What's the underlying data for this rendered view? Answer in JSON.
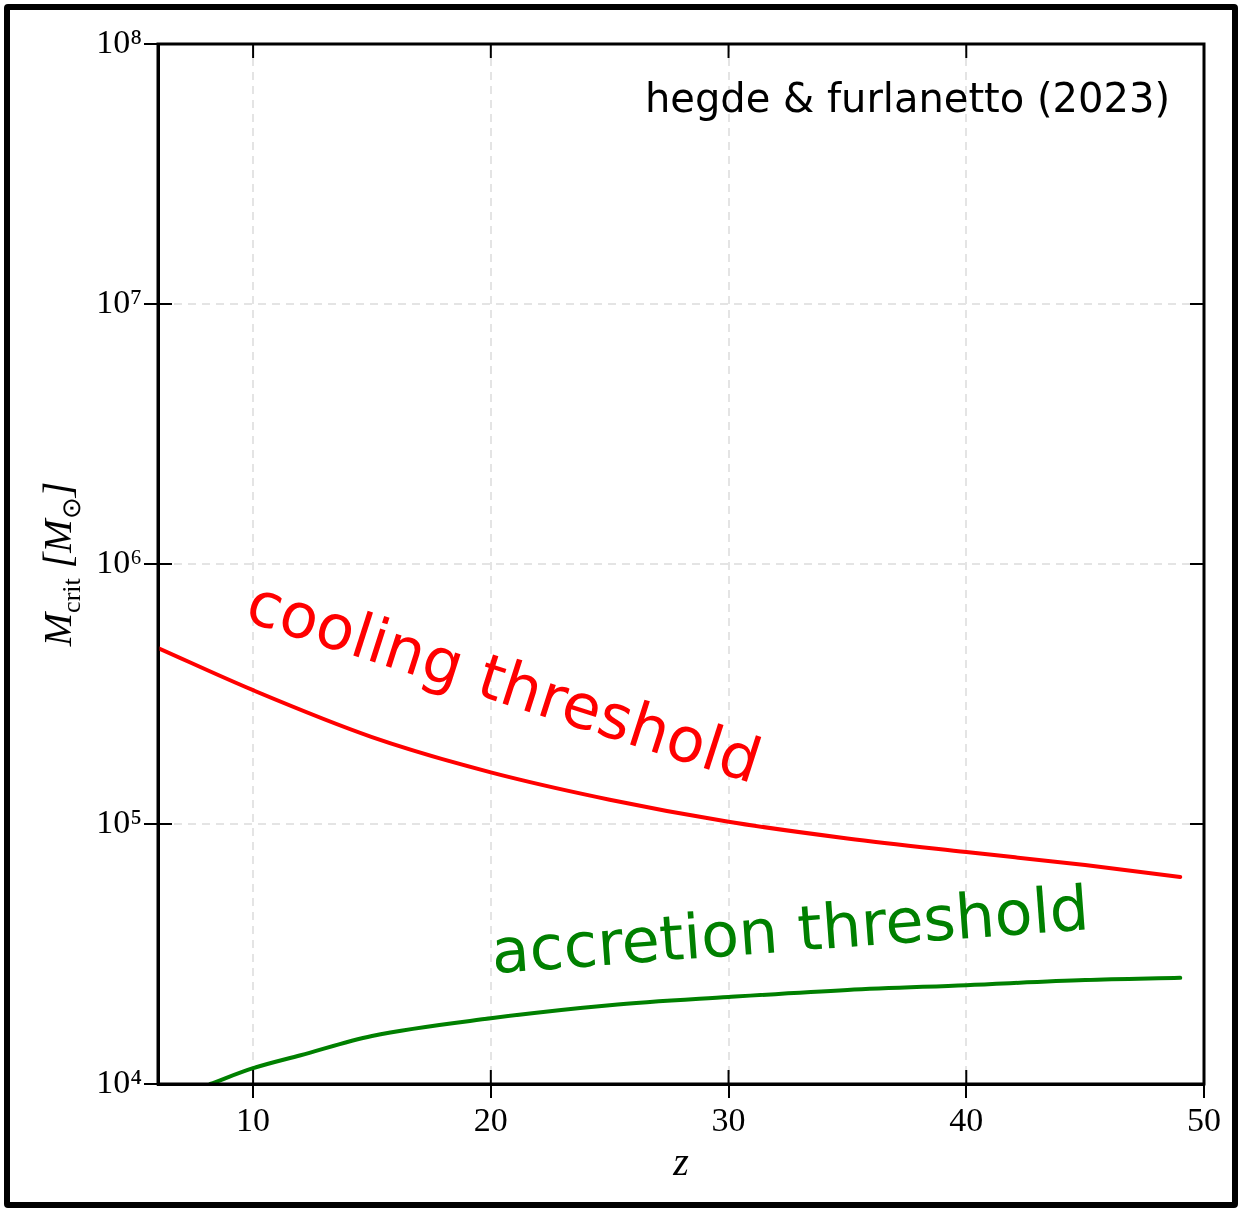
{
  "chart_data": {
    "type": "line",
    "xlabel": "z",
    "ylabel": "M$_{crit}$ [M$_{⊙}$]",
    "annotations": [
      "hegde & furlanetto (2023)"
    ],
    "xlim": [
      6,
      50
    ],
    "xticks": [
      10,
      20,
      30,
      40,
      50
    ],
    "ylim": [
      10000,
      100000000
    ],
    "yticks": [
      {
        "value": 10000,
        "label": "10⁴"
      },
      {
        "value": 100000,
        "label": "10⁵"
      },
      {
        "value": 1000000,
        "label": "10⁶"
      },
      {
        "value": 10000000,
        "label": "10⁷"
      },
      {
        "value": 100000000,
        "label": "10⁸"
      }
    ],
    "log": "y",
    "grid": true,
    "legend": false,
    "marker": "none",
    "line_style": "solid",
    "series": [
      {
        "name": "cooling threshold",
        "color": "#ff0000",
        "x": [
          6,
          10,
          15,
          20,
          25,
          30,
          35,
          40,
          45,
          49
        ],
        "values": [
          475000,
          327000,
          216000,
          158000,
          124000,
          102000,
          88000,
          78000,
          69500,
          62500
        ]
      },
      {
        "name": "accretion threshold",
        "color": "#008000",
        "x": [
          8.2,
          10,
          12,
          15,
          20,
          25,
          30,
          35,
          40,
          45,
          49
        ],
        "values": [
          10000,
          11500,
          12900,
          15300,
          17900,
          20100,
          21600,
          23000,
          24000,
          25100,
          25600
        ]
      }
    ]
  }
}
